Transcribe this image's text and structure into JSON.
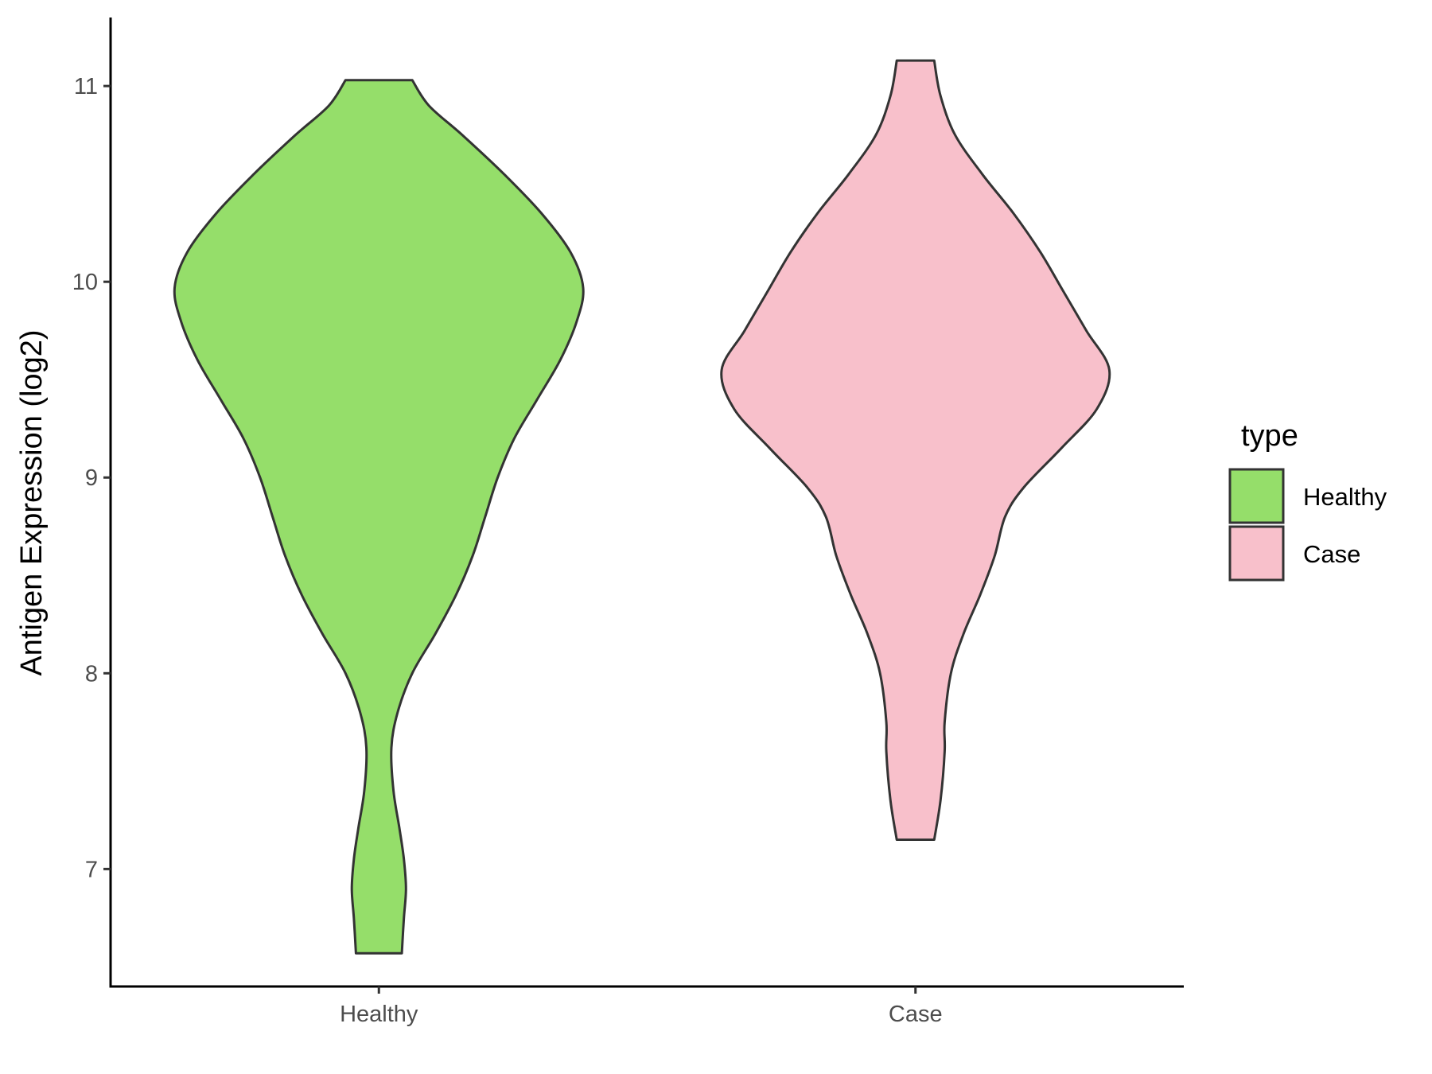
{
  "chart_data": {
    "type": "violin",
    "title": "",
    "xlabel": "",
    "ylabel": "Antigen Expression (log2)",
    "ylim": [
      6.4,
      11.35
    ],
    "yticks": [
      7,
      8,
      9,
      10,
      11
    ],
    "categories": [
      "Healthy",
      "Case"
    ],
    "grid": false,
    "legend": {
      "title": "type",
      "placement": "right",
      "entries": [
        {
          "label": "Healthy",
          "color": "#95DE6A"
        },
        {
          "label": "Case",
          "color": "#F8C0CB"
        }
      ]
    },
    "series": [
      {
        "category": "Healthy",
        "color": "#95DE6A",
        "min": 6.57,
        "max": 11.03,
        "density": [
          [
            6.57,
            0.11
          ],
          [
            6.75,
            0.12
          ],
          [
            6.9,
            0.13
          ],
          [
            7.05,
            0.12
          ],
          [
            7.2,
            0.1
          ],
          [
            7.4,
            0.07
          ],
          [
            7.62,
            0.06
          ],
          [
            7.8,
            0.09
          ],
          [
            8.0,
            0.16
          ],
          [
            8.2,
            0.27
          ],
          [
            8.4,
            0.37
          ],
          [
            8.6,
            0.45
          ],
          [
            8.8,
            0.51
          ],
          [
            9.0,
            0.57
          ],
          [
            9.2,
            0.65
          ],
          [
            9.4,
            0.76
          ],
          [
            9.6,
            0.87
          ],
          [
            9.8,
            0.95
          ],
          [
            9.97,
            0.98
          ],
          [
            10.15,
            0.92
          ],
          [
            10.35,
            0.78
          ],
          [
            10.55,
            0.6
          ],
          [
            10.75,
            0.4
          ],
          [
            10.9,
            0.24
          ],
          [
            11.03,
            0.16
          ]
        ]
      },
      {
        "category": "Case",
        "color": "#F8C0CB",
        "min": 7.15,
        "max": 11.13,
        "density": [
          [
            7.15,
            0.09
          ],
          [
            7.35,
            0.12
          ],
          [
            7.6,
            0.14
          ],
          [
            7.75,
            0.14
          ],
          [
            8.0,
            0.17
          ],
          [
            8.2,
            0.23
          ],
          [
            8.4,
            0.31
          ],
          [
            8.6,
            0.38
          ],
          [
            8.8,
            0.43
          ],
          [
            8.95,
            0.52
          ],
          [
            9.15,
            0.7
          ],
          [
            9.35,
            0.87
          ],
          [
            9.55,
            0.93
          ],
          [
            9.75,
            0.82
          ],
          [
            9.95,
            0.71
          ],
          [
            10.15,
            0.6
          ],
          [
            10.35,
            0.47
          ],
          [
            10.55,
            0.32
          ],
          [
            10.75,
            0.19
          ],
          [
            10.95,
            0.12
          ],
          [
            11.13,
            0.09
          ]
        ]
      }
    ]
  }
}
